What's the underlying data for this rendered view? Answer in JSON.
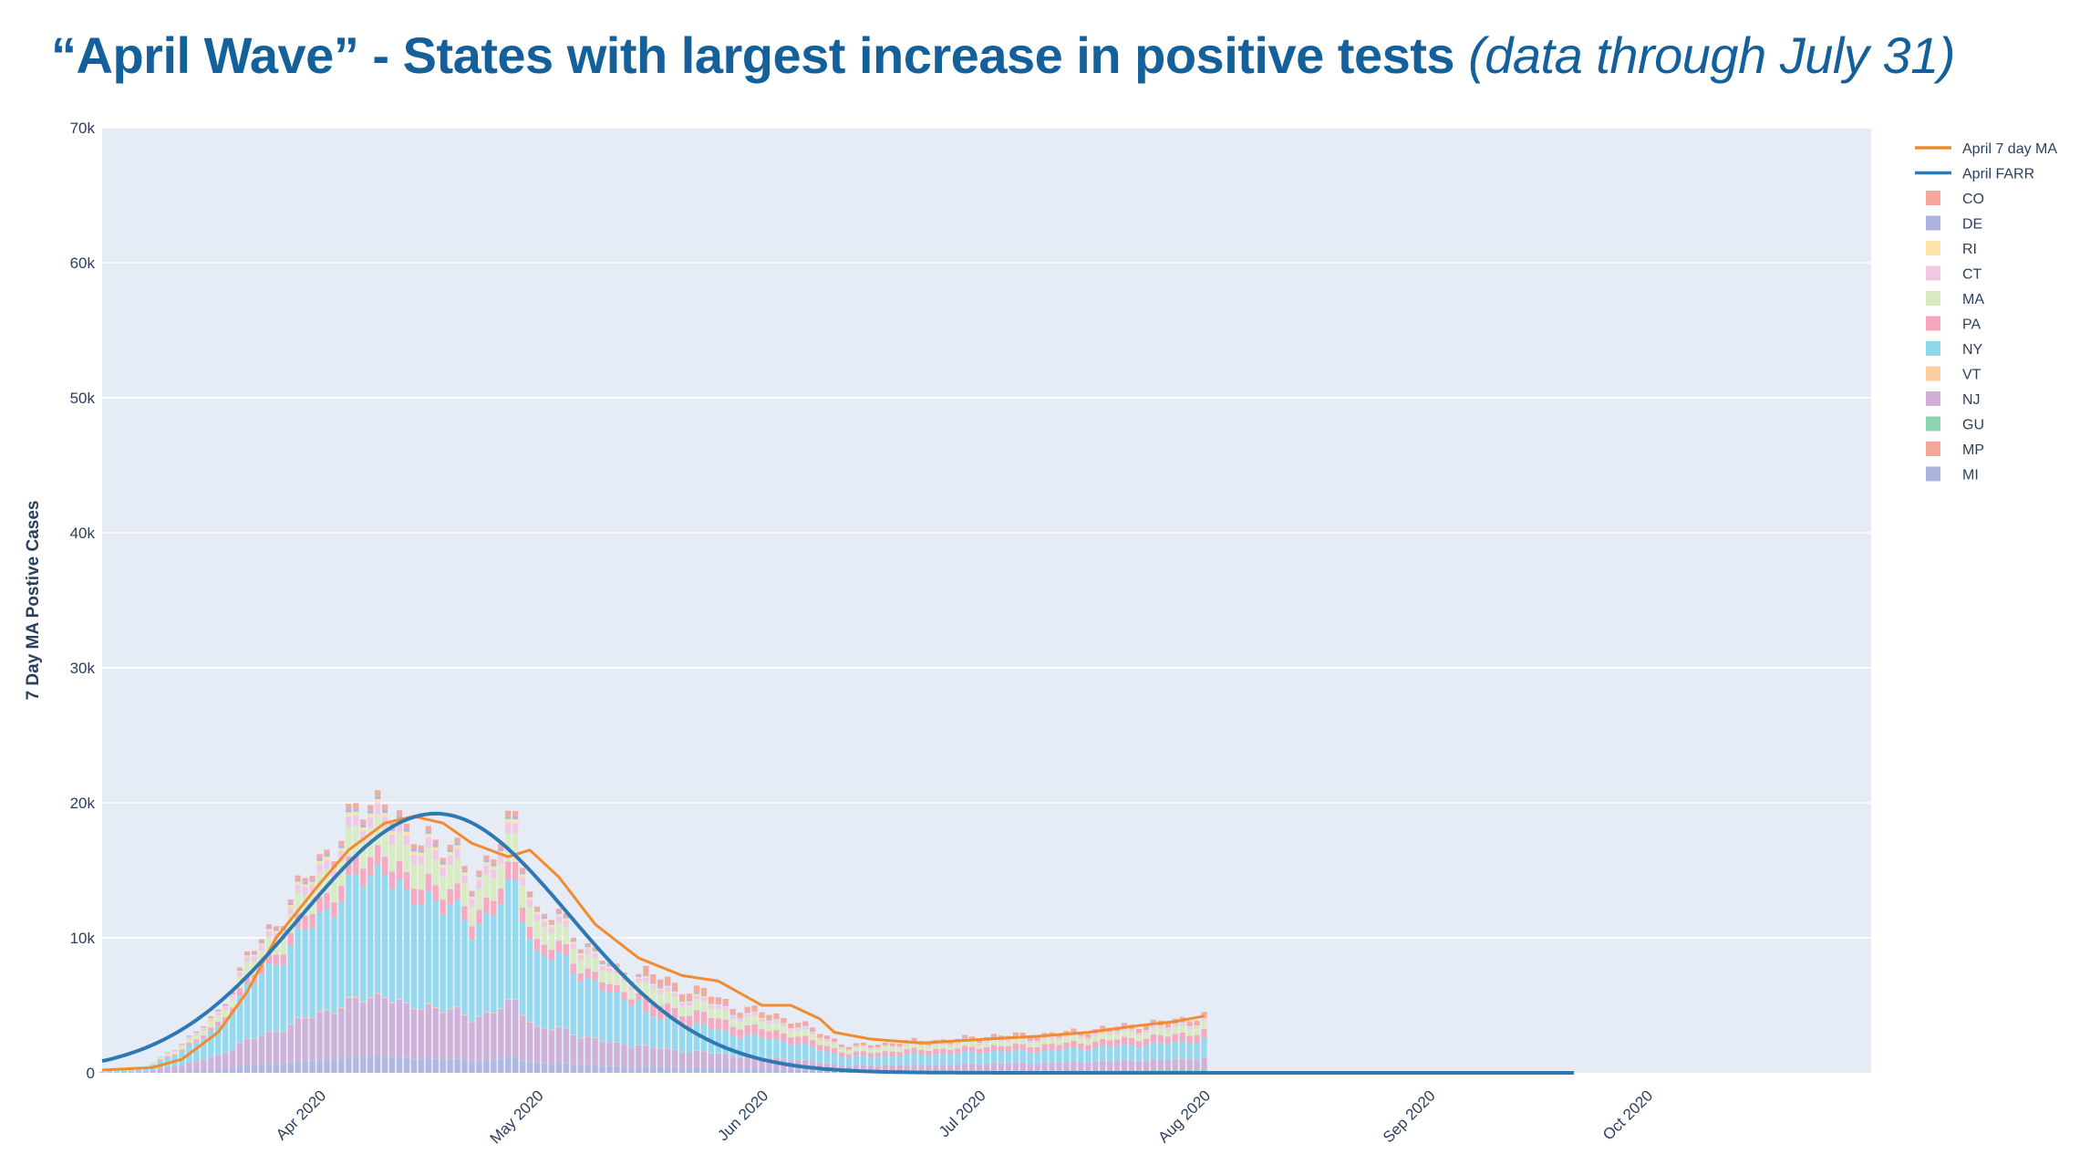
{
  "title": {
    "main": "“April Wave” - States with largest increase in positive tests",
    "sub": "(data through July 31)"
  },
  "chart_data": {
    "type": "bar",
    "title": "“April Wave” - States with largest increase in positive tests (data through July 31)",
    "ylabel": "7 Day MA Postive Cases",
    "xlabel": "",
    "ylim": [
      0,
      70000
    ],
    "xlim": [
      "2020-03-01",
      "2020-10-31"
    ],
    "y_ticks": [
      {
        "value": 0,
        "label": "0"
      },
      {
        "value": 10000,
        "label": "10k"
      },
      {
        "value": 20000,
        "label": "20k"
      },
      {
        "value": 30000,
        "label": "30k"
      },
      {
        "value": 40000,
        "label": "40k"
      },
      {
        "value": 50000,
        "label": "50k"
      },
      {
        "value": 60000,
        "label": "60k"
      },
      {
        "value": 70000,
        "label": "70k"
      }
    ],
    "x_ticks": [
      {
        "date": "2020-04-01",
        "label": "Apr 2020"
      },
      {
        "date": "2020-05-01",
        "label": "May 2020"
      },
      {
        "date": "2020-06-01",
        "label": "Jun 2020"
      },
      {
        "date": "2020-07-01",
        "label": "Jul 2020"
      },
      {
        "date": "2020-08-01",
        "label": "Aug 2020"
      },
      {
        "date": "2020-09-01",
        "label": "Sep 2020"
      },
      {
        "date": "2020-10-01",
        "label": "Oct 2020"
      }
    ],
    "grid": true,
    "legend_position": "right",
    "stack_order": [
      "MI",
      "MP",
      "GU",
      "NJ",
      "VT",
      "NY",
      "PA",
      "MA",
      "CT",
      "RI",
      "DE",
      "CO"
    ],
    "series_colors": {
      "CO": "#f4a79a",
      "DE": "#adb4df",
      "RI": "#fde3a4",
      "CT": "#f0c8e4",
      "MA": "#d8ebbe",
      "PA": "#f6a7bd",
      "NY": "#8fd8ec",
      "VT": "#fbcd9f",
      "NJ": "#cfaed8",
      "GU": "#8dd4b4",
      "MP": "#f4a79a",
      "MI": "#adb4df"
    },
    "totals_daily": [
      {
        "date": "2020-03-01",
        "value": 100
      },
      {
        "date": "2020-03-07",
        "value": 400
      },
      {
        "date": "2020-03-10",
        "value": 1500
      },
      {
        "date": "2020-03-14",
        "value": 3000
      },
      {
        "date": "2020-03-17",
        "value": 4500
      },
      {
        "date": "2020-03-19",
        "value": 6500
      },
      {
        "date": "2020-03-21",
        "value": 8500
      },
      {
        "date": "2020-03-24",
        "value": 10500
      },
      {
        "date": "2020-03-28",
        "value": 13500
      },
      {
        "date": "2020-04-01",
        "value": 16500
      },
      {
        "date": "2020-04-05",
        "value": 19000
      },
      {
        "date": "2020-04-09",
        "value": 21000
      },
      {
        "date": "2020-04-12",
        "value": 17000
      },
      {
        "date": "2020-04-15",
        "value": 18000
      },
      {
        "date": "2020-04-18",
        "value": 16500
      },
      {
        "date": "2020-04-21",
        "value": 14500
      },
      {
        "date": "2020-04-24",
        "value": 16500
      },
      {
        "date": "2020-04-27",
        "value": 18500
      },
      {
        "date": "2020-04-30",
        "value": 12000
      },
      {
        "date": "2020-05-03",
        "value": 11500
      },
      {
        "date": "2020-05-07",
        "value": 9500
      },
      {
        "date": "2020-05-11",
        "value": 7500
      },
      {
        "date": "2020-05-15",
        "value": 7500
      },
      {
        "date": "2020-05-19",
        "value": 6500
      },
      {
        "date": "2020-05-23",
        "value": 6000
      },
      {
        "date": "2020-05-27",
        "value": 5000
      },
      {
        "date": "2020-05-31",
        "value": 4500
      },
      {
        "date": "2020-06-04",
        "value": 4000
      },
      {
        "date": "2020-06-08",
        "value": 3000
      },
      {
        "date": "2020-06-12",
        "value": 2000
      },
      {
        "date": "2020-06-17",
        "value": 2200
      },
      {
        "date": "2020-06-22",
        "value": 2400
      },
      {
        "date": "2020-06-27",
        "value": 2500
      },
      {
        "date": "2020-07-02",
        "value": 2800
      },
      {
        "date": "2020-07-07",
        "value": 2800
      },
      {
        "date": "2020-07-12",
        "value": 3000
      },
      {
        "date": "2020-07-17",
        "value": 3300
      },
      {
        "date": "2020-07-22",
        "value": 3600
      },
      {
        "date": "2020-07-26",
        "value": 3800
      },
      {
        "date": "2020-07-31",
        "value": 4300
      }
    ],
    "series": [
      {
        "name": "April 7 day MA",
        "type": "line",
        "color": "#f28b30",
        "points": [
          {
            "date": "2020-03-01",
            "value": 200
          },
          {
            "date": "2020-03-08",
            "value": 400
          },
          {
            "date": "2020-03-12",
            "value": 1000
          },
          {
            "date": "2020-03-17",
            "value": 3000
          },
          {
            "date": "2020-03-21",
            "value": 6000
          },
          {
            "date": "2020-03-25",
            "value": 10000
          },
          {
            "date": "2020-03-31",
            "value": 14000
          },
          {
            "date": "2020-04-04",
            "value": 16500
          },
          {
            "date": "2020-04-09",
            "value": 18500
          },
          {
            "date": "2020-04-13",
            "value": 19000
          },
          {
            "date": "2020-04-17",
            "value": 18500
          },
          {
            "date": "2020-04-21",
            "value": 17000
          },
          {
            "date": "2020-04-26",
            "value": 16000
          },
          {
            "date": "2020-04-29",
            "value": 16500
          },
          {
            "date": "2020-05-03",
            "value": 14500
          },
          {
            "date": "2020-05-08",
            "value": 11000
          },
          {
            "date": "2020-05-14",
            "value": 8500
          },
          {
            "date": "2020-05-20",
            "value": 7200
          },
          {
            "date": "2020-05-25",
            "value": 6800
          },
          {
            "date": "2020-05-31",
            "value": 5000
          },
          {
            "date": "2020-06-04",
            "value": 5000
          },
          {
            "date": "2020-06-08",
            "value": 4000
          },
          {
            "date": "2020-06-10",
            "value": 3000
          },
          {
            "date": "2020-06-15",
            "value": 2500
          },
          {
            "date": "2020-06-22",
            "value": 2200
          },
          {
            "date": "2020-07-01",
            "value": 2500
          },
          {
            "date": "2020-07-08",
            "value": 2700
          },
          {
            "date": "2020-07-15",
            "value": 3000
          },
          {
            "date": "2020-07-22",
            "value": 3500
          },
          {
            "date": "2020-07-27",
            "value": 3800
          },
          {
            "date": "2020-07-31",
            "value": 4200
          }
        ]
      },
      {
        "name": "April FARR",
        "type": "line",
        "color": "#2e78b4",
        "model": "gaussian",
        "peak_date": "2020-04-16",
        "peak_value": 19200,
        "sigma_days": 18.5,
        "points": [
          {
            "date": "2020-03-01",
            "value": 5000
          },
          {
            "date": "2020-03-15",
            "value": 9600
          },
          {
            "date": "2020-04-01",
            "value": 16000
          },
          {
            "date": "2020-04-16",
            "value": 19200
          },
          {
            "date": "2020-05-01",
            "value": 13000
          },
          {
            "date": "2020-05-15",
            "value": 6500
          },
          {
            "date": "2020-06-01",
            "value": 1500
          },
          {
            "date": "2020-06-15",
            "value": 300
          },
          {
            "date": "2020-07-01",
            "value": 30
          },
          {
            "date": "2020-09-20",
            "value": 0
          }
        ],
        "end_date": "2020-09-20"
      },
      {
        "name": "CO",
        "type": "bar"
      },
      {
        "name": "DE",
        "type": "bar"
      },
      {
        "name": "RI",
        "type": "bar"
      },
      {
        "name": "CT",
        "type": "bar"
      },
      {
        "name": "MA",
        "type": "bar"
      },
      {
        "name": "PA",
        "type": "bar"
      },
      {
        "name": "NY",
        "type": "bar"
      },
      {
        "name": "VT",
        "type": "bar"
      },
      {
        "name": "NJ",
        "type": "bar"
      },
      {
        "name": "GU",
        "type": "bar"
      },
      {
        "name": "MP",
        "type": "bar"
      },
      {
        "name": "MI",
        "type": "bar"
      }
    ],
    "legend": [
      {
        "label": "April 7 day MA",
        "kind": "line",
        "color": "#f28b30"
      },
      {
        "label": "April FARR",
        "kind": "line",
        "color": "#2e78b4"
      },
      {
        "label": "CO",
        "kind": "box",
        "color": "#f4a79a"
      },
      {
        "label": "DE",
        "kind": "box",
        "color": "#adb4df"
      },
      {
        "label": "RI",
        "kind": "box",
        "color": "#fde3a4"
      },
      {
        "label": "CT",
        "kind": "box",
        "color": "#f0c8e4"
      },
      {
        "label": "MA",
        "kind": "box",
        "color": "#d8ebbe"
      },
      {
        "label": "PA",
        "kind": "box",
        "color": "#f6a7bd"
      },
      {
        "label": "NY",
        "kind": "box",
        "color": "#8fd8ec"
      },
      {
        "label": "VT",
        "kind": "box",
        "color": "#fbcd9f"
      },
      {
        "label": "NJ",
        "kind": "box",
        "color": "#cfaed8"
      },
      {
        "label": "GU",
        "kind": "box",
        "color": "#8dd4b4"
      },
      {
        "label": "MP",
        "kind": "box",
        "color": "#f4a79a"
      },
      {
        "label": "MI",
        "kind": "box",
        "color": "#adb4df"
      }
    ],
    "plot_background": "#e5ecf6",
    "grid_color": "#ffffff"
  }
}
